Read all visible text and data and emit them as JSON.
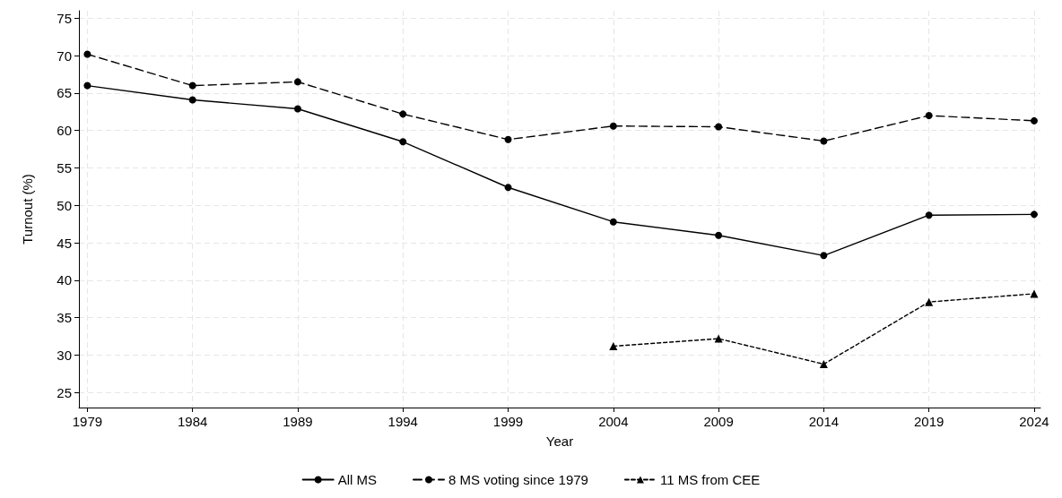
{
  "chart_data": {
    "type": "line",
    "xlabel": "Year",
    "ylabel": "Turnout (%)",
    "x": [
      1979,
      1984,
      1989,
      1994,
      1999,
      2004,
      2009,
      2014,
      2019,
      2024
    ],
    "series": [
      {
        "name": "All MS",
        "color": "#000000",
        "marker": "circle",
        "line_style": "solid",
        "values": [
          66.0,
          64.1,
          62.9,
          58.5,
          52.4,
          47.8,
          46.0,
          43.3,
          48.7,
          48.8
        ]
      },
      {
        "name": "8 MS voting since 1979",
        "color": "#000000",
        "marker": "circle",
        "line_style": "dashed",
        "values": [
          70.2,
          66.0,
          66.5,
          62.2,
          58.8,
          60.6,
          60.5,
          58.6,
          62.0,
          61.3
        ]
      },
      {
        "name": "11 MS from CEE",
        "color": "#000000",
        "marker": "triangle",
        "line_style": "dotted",
        "values": [
          null,
          null,
          null,
          null,
          null,
          31.2,
          32.2,
          28.8,
          37.1,
          38.2
        ]
      }
    ],
    "xlim": [
      1978.6,
      2024.3
    ],
    "xticks": [
      1979,
      1984,
      1989,
      1994,
      1999,
      2004,
      2009,
      2014,
      2019,
      2024
    ],
    "ylim": [
      23,
      76
    ],
    "yticks": [
      25,
      30,
      35,
      40,
      45,
      50,
      55,
      60,
      65,
      70,
      75
    ],
    "grid": true,
    "legend": "bottom"
  }
}
